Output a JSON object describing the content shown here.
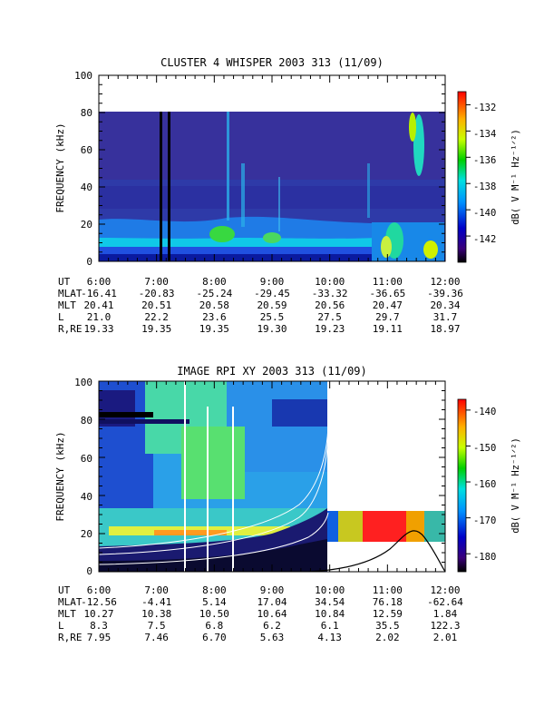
{
  "chart_data": [
    {
      "type": "heatmap",
      "title": "CLUSTER 4 WHISPER 2003 313 (11/09)",
      "ylabel": "FREQUENCY (kHz)",
      "ylim": [
        0,
        100
      ],
      "yticks": [
        "0",
        "20",
        "40",
        "60",
        "80",
        "100"
      ],
      "x_ticks": [
        "6:00",
        "7:00",
        "8:00",
        "9:00",
        "10:00",
        "11:00",
        "12:00"
      ],
      "data_max_freq": 80,
      "colorbar": {
        "label": "dB( V M⁻¹ Hz⁻¹ᐟ²)",
        "ticks": [
          "-132",
          "-134",
          "-136",
          "-138",
          "-140",
          "-142"
        ],
        "range": [
          -144,
          -131
        ]
      },
      "ephemeris": {
        "labels": [
          "UT",
          "MLAT",
          "MLT",
          "L",
          "R,RE"
        ],
        "rows": [
          [
            "6:00",
            "7:00",
            "8:00",
            "9:00",
            "10:00",
            "11:00",
            "12:00"
          ],
          [
            "-16.41",
            "-20.83",
            "-25.24",
            "-29.45",
            "-33.32",
            "-36.65",
            "-39.36"
          ],
          [
            "20.41",
            "20.51",
            "20.58",
            "20.59",
            "20.56",
            "20.47",
            "20.34"
          ],
          [
            "21.0",
            "22.2",
            "23.6",
            "25.5",
            "27.5",
            "29.7",
            "31.7"
          ],
          [
            "19.33",
            "19.35",
            "19.35",
            "19.30",
            "19.23",
            "19.11",
            "18.97"
          ]
        ]
      }
    },
    {
      "type": "heatmap",
      "title": "IMAGE RPI XY 2003 313 (11/09)",
      "ylabel": "FREQUENCY (kHz)",
      "ylim": [
        0,
        100
      ],
      "yticks": [
        "0",
        "20",
        "40",
        "60",
        "80",
        "100"
      ],
      "x_ticks": [
        "6:00",
        "7:00",
        "8:00",
        "9:00",
        "10:00",
        "11:00",
        "12:00"
      ],
      "colorbar": {
        "label": "dB( V M⁻¹ Hz⁻¹ᐟ²)",
        "ticks": [
          "-140",
          "-150",
          "-160",
          "-170",
          "-180"
        ],
        "range": [
          -185,
          -137
        ]
      },
      "ephemeris": {
        "labels": [
          "UT",
          "MLAT",
          "MLT",
          "L",
          "R,RE"
        ],
        "rows": [
          [
            "6:00",
            "7:00",
            "8:00",
            "9:00",
            "10:00",
            "11:00",
            "12:00"
          ],
          [
            "-12.56",
            "-4.41",
            "5.14",
            "17.04",
            "34.54",
            "76.18",
            "-62.64"
          ],
          [
            "10.27",
            "10.38",
            "10.50",
            "10.64",
            "10.84",
            "12.59",
            "1.84"
          ],
          [
            "8.3",
            "7.5",
            "6.8",
            "6.2",
            "6.1",
            "35.5",
            "122.3"
          ],
          [
            "7.95",
            "7.46",
            "6.70",
            "5.63",
            "4.13",
            "2.02",
            "2.01"
          ]
        ]
      }
    }
  ]
}
